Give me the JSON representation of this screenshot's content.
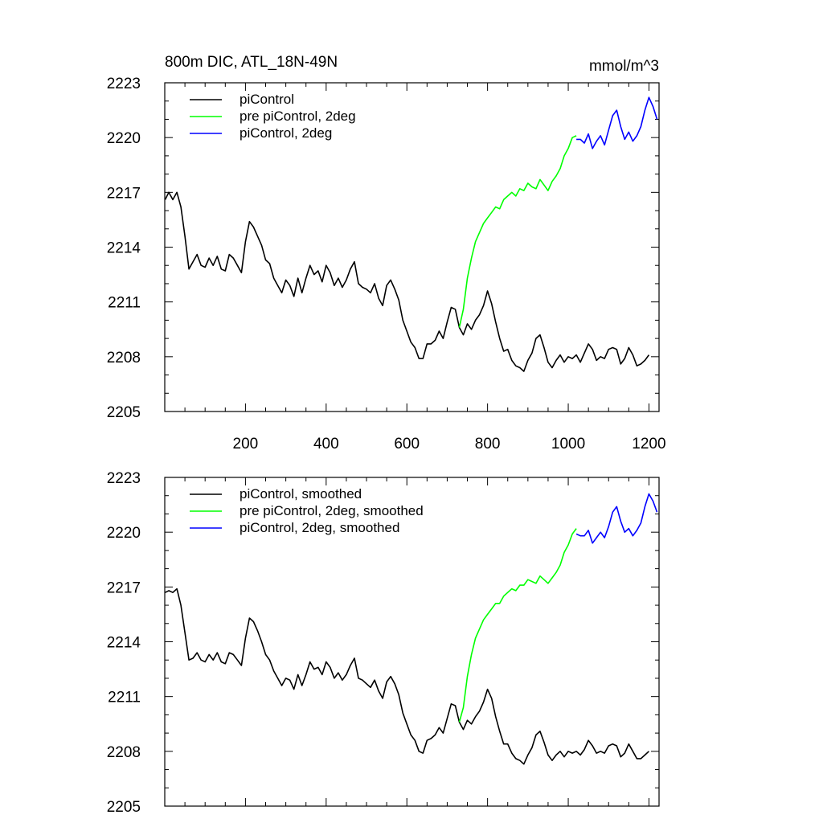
{
  "chart_data": [
    {
      "type": "line",
      "title": "800m DIC, ATL_18N-49N",
      "units": "mmol/m^3",
      "xlim": [
        0,
        1225
      ],
      "ylim": [
        2205,
        2223
      ],
      "y_ticks": [
        2205,
        2208,
        2211,
        2214,
        2217,
        2220,
        2223
      ],
      "x_ticks": [
        200,
        400,
        600,
        800,
        1000,
        1200
      ],
      "x_tick_labels_shown": true,
      "legend_position": "top-left",
      "series": [
        {
          "name": "piControl",
          "color": "#000000",
          "x": [
            1,
            10,
            20,
            30,
            40,
            50,
            60,
            70,
            80,
            90,
            100,
            110,
            120,
            130,
            140,
            150,
            160,
            170,
            180,
            190,
            200,
            210,
            220,
            230,
            240,
            250,
            260,
            270,
            280,
            290,
            300,
            310,
            320,
            330,
            340,
            350,
            360,
            370,
            380,
            390,
            400,
            410,
            420,
            430,
            440,
            450,
            460,
            470,
            480,
            490,
            500,
            510,
            520,
            530,
            540,
            550,
            560,
            570,
            580,
            590,
            600,
            610,
            620,
            630,
            640,
            650,
            660,
            670,
            680,
            690,
            700,
            710,
            720,
            730,
            740,
            750,
            760,
            770,
            780,
            790,
            800,
            810,
            820,
            830,
            840,
            850,
            860,
            870,
            880,
            890,
            900,
            910,
            920,
            930,
            940,
            950,
            960,
            970,
            980,
            990,
            1000,
            1010,
            1020,
            1030,
            1040,
            1050,
            1060,
            1070,
            1080,
            1090,
            1100,
            1110,
            1120,
            1130,
            1140,
            1150,
            1160,
            1170,
            1180,
            1190,
            1200
          ],
          "y": [
            2216.6,
            2217.0,
            2216.6,
            2217.0,
            2216.2,
            2214.6,
            2212.8,
            2213.2,
            2213.6,
            2213.0,
            2212.9,
            2213.4,
            2213.0,
            2213.5,
            2212.8,
            2212.7,
            2213.6,
            2213.4,
            2213.0,
            2212.6,
            2214.3,
            2215.4,
            2215.1,
            2214.6,
            2214.1,
            2213.3,
            2213.1,
            2212.3,
            2211.9,
            2211.5,
            2212.2,
            2211.9,
            2211.3,
            2212.3,
            2211.5,
            2212.3,
            2213.0,
            2212.5,
            2212.7,
            2212.1,
            2213.0,
            2212.6,
            2211.9,
            2212.3,
            2211.8,
            2212.2,
            2212.8,
            2213.2,
            2212.0,
            2211.8,
            2211.7,
            2211.5,
            2212.0,
            2211.2,
            2210.8,
            2211.9,
            2212.2,
            2211.7,
            2211.1,
            2210.0,
            2209.4,
            2208.8,
            2208.5,
            2207.9,
            2207.9,
            2208.7,
            2208.7,
            2208.9,
            2209.4,
            2209.0,
            2209.9,
            2210.7,
            2210.6,
            2209.6,
            2209.2,
            2209.8,
            2209.5,
            2210.0,
            2210.3,
            2210.8,
            2211.6,
            2210.9,
            2209.9,
            2209.0,
            2208.3,
            2208.4,
            2207.8,
            2207.5,
            2207.4,
            2207.2,
            2207.8,
            2208.2,
            2209.0,
            2209.2,
            2208.5,
            2207.7,
            2207.4,
            2207.8,
            2208.1,
            2207.7,
            2208.0,
            2207.9,
            2208.1,
            2207.7,
            2208.2,
            2208.7,
            2208.4,
            2207.8,
            2208.0,
            2207.9,
            2208.4,
            2208.5,
            2208.4,
            2207.6,
            2207.9,
            2208.5,
            2208.1,
            2207.5,
            2207.6,
            2207.8,
            2208.1
          ]
        },
        {
          "name": "pre piControl, 2deg",
          "color": "#00ff00",
          "x": [
            730,
            740,
            750,
            760,
            770,
            780,
            790,
            800,
            810,
            820,
            830,
            840,
            850,
            860,
            870,
            880,
            890,
            900,
            910,
            920,
            930,
            940,
            950,
            960,
            970,
            980,
            990,
            1000,
            1010,
            1020
          ],
          "y": [
            2209.6,
            2210.6,
            2212.3,
            2213.4,
            2214.3,
            2214.8,
            2215.3,
            2215.6,
            2215.9,
            2216.2,
            2216.1,
            2216.6,
            2216.8,
            2217.0,
            2216.8,
            2217.2,
            2217.1,
            2217.5,
            2217.3,
            2217.2,
            2217.7,
            2217.4,
            2217.1,
            2217.6,
            2217.9,
            2218.3,
            2219.0,
            2219.4,
            2220.0,
            2220.1
          ]
        },
        {
          "name": "piControl, 2deg",
          "color": "#0000ff",
          "x": [
            1020,
            1030,
            1040,
            1050,
            1060,
            1070,
            1080,
            1090,
            1100,
            1110,
            1120,
            1130,
            1140,
            1150,
            1160,
            1170,
            1180,
            1190,
            1200,
            1210,
            1220
          ],
          "y": [
            2219.9,
            2219.9,
            2219.7,
            2220.2,
            2219.4,
            2219.8,
            2220.1,
            2219.6,
            2220.4,
            2221.2,
            2221.5,
            2220.6,
            2219.9,
            2220.3,
            2219.8,
            2220.1,
            2220.6,
            2221.5,
            2222.2,
            2221.7,
            2221.0
          ]
        }
      ]
    },
    {
      "type": "line",
      "xlim": [
        0,
        1225
      ],
      "ylim": [
        2205,
        2223
      ],
      "y_ticks": [
        2205,
        2208,
        2211,
        2214,
        2217,
        2220,
        2223
      ],
      "x_ticks": [
        200,
        400,
        600,
        800,
        1000,
        1200
      ],
      "x_tick_labels_shown": false,
      "legend_position": "top-left",
      "series": [
        {
          "name": "piControl, smoothed",
          "color": "#000000",
          "x": [
            1,
            10,
            20,
            30,
            40,
            50,
            60,
            70,
            80,
            90,
            100,
            110,
            120,
            130,
            140,
            150,
            160,
            170,
            180,
            190,
            200,
            210,
            220,
            230,
            240,
            250,
            260,
            270,
            280,
            290,
            300,
            310,
            320,
            330,
            340,
            350,
            360,
            370,
            380,
            390,
            400,
            410,
            420,
            430,
            440,
            450,
            460,
            470,
            480,
            490,
            500,
            510,
            520,
            530,
            540,
            550,
            560,
            570,
            580,
            590,
            600,
            610,
            620,
            630,
            640,
            650,
            660,
            670,
            680,
            690,
            700,
            710,
            720,
            730,
            740,
            750,
            760,
            770,
            780,
            790,
            800,
            810,
            820,
            830,
            840,
            850,
            860,
            870,
            880,
            890,
            900,
            910,
            920,
            930,
            940,
            950,
            960,
            970,
            980,
            990,
            1000,
            1010,
            1020,
            1030,
            1040,
            1050,
            1060,
            1070,
            1080,
            1090,
            1100,
            1110,
            1120,
            1130,
            1140,
            1150,
            1160,
            1170,
            1180,
            1190,
            1200
          ],
          "y": [
            2216.7,
            2216.8,
            2216.7,
            2216.9,
            2216.0,
            2214.5,
            2213.0,
            2213.1,
            2213.4,
            2213.0,
            2212.9,
            2213.3,
            2213.0,
            2213.4,
            2212.9,
            2212.8,
            2213.4,
            2213.3,
            2213.0,
            2212.7,
            2214.2,
            2215.3,
            2215.1,
            2214.6,
            2214.0,
            2213.3,
            2213.0,
            2212.4,
            2212.0,
            2211.6,
            2212.0,
            2211.9,
            2211.4,
            2212.2,
            2211.6,
            2212.2,
            2212.9,
            2212.5,
            2212.6,
            2212.2,
            2212.9,
            2212.6,
            2212.0,
            2212.3,
            2211.9,
            2212.2,
            2212.7,
            2213.1,
            2212.0,
            2211.9,
            2211.7,
            2211.5,
            2211.9,
            2211.3,
            2210.9,
            2211.8,
            2212.1,
            2211.7,
            2211.1,
            2210.1,
            2209.5,
            2208.9,
            2208.6,
            2208.0,
            2207.9,
            2208.6,
            2208.7,
            2208.9,
            2209.3,
            2209.0,
            2209.8,
            2210.6,
            2210.5,
            2209.6,
            2209.2,
            2209.7,
            2209.5,
            2209.9,
            2210.2,
            2210.7,
            2211.4,
            2210.9,
            2209.9,
            2209.1,
            2208.4,
            2208.4,
            2207.9,
            2207.6,
            2207.5,
            2207.3,
            2207.8,
            2208.2,
            2208.9,
            2209.1,
            2208.5,
            2207.8,
            2207.5,
            2207.8,
            2208.0,
            2207.7,
            2208.0,
            2207.9,
            2208.0,
            2207.8,
            2208.1,
            2208.6,
            2208.3,
            2207.9,
            2208.0,
            2207.9,
            2208.3,
            2208.4,
            2208.3,
            2207.7,
            2207.9,
            2208.4,
            2208.0,
            2207.6,
            2207.6,
            2207.8,
            2208.0
          ]
        },
        {
          "name": "pre piControl, 2deg, smoothed",
          "color": "#00ff00",
          "x": [
            730,
            740,
            750,
            760,
            770,
            780,
            790,
            800,
            810,
            820,
            830,
            840,
            850,
            860,
            870,
            880,
            890,
            900,
            910,
            920,
            930,
            940,
            950,
            960,
            970,
            980,
            990,
            1000,
            1010,
            1020
          ],
          "y": [
            2209.6,
            2210.4,
            2212.1,
            2213.3,
            2214.2,
            2214.7,
            2215.2,
            2215.5,
            2215.8,
            2216.1,
            2216.1,
            2216.5,
            2216.7,
            2216.9,
            2216.8,
            2217.1,
            2217.1,
            2217.4,
            2217.3,
            2217.2,
            2217.6,
            2217.4,
            2217.2,
            2217.5,
            2217.8,
            2218.2,
            2218.9,
            2219.3,
            2219.9,
            2220.2
          ]
        },
        {
          "name": "piControl, 2deg, smoothed",
          "color": "#0000ff",
          "x": [
            1020,
            1030,
            1040,
            1050,
            1060,
            1070,
            1080,
            1090,
            1100,
            1110,
            1120,
            1130,
            1140,
            1150,
            1160,
            1170,
            1180,
            1190,
            1200,
            1210,
            1220
          ],
          "y": [
            2219.9,
            2219.8,
            2219.8,
            2220.1,
            2219.4,
            2219.7,
            2220.0,
            2219.7,
            2220.3,
            2221.1,
            2221.4,
            2220.6,
            2220.0,
            2220.2,
            2219.8,
            2220.1,
            2220.5,
            2221.4,
            2222.1,
            2221.7,
            2221.1
          ]
        }
      ]
    }
  ]
}
